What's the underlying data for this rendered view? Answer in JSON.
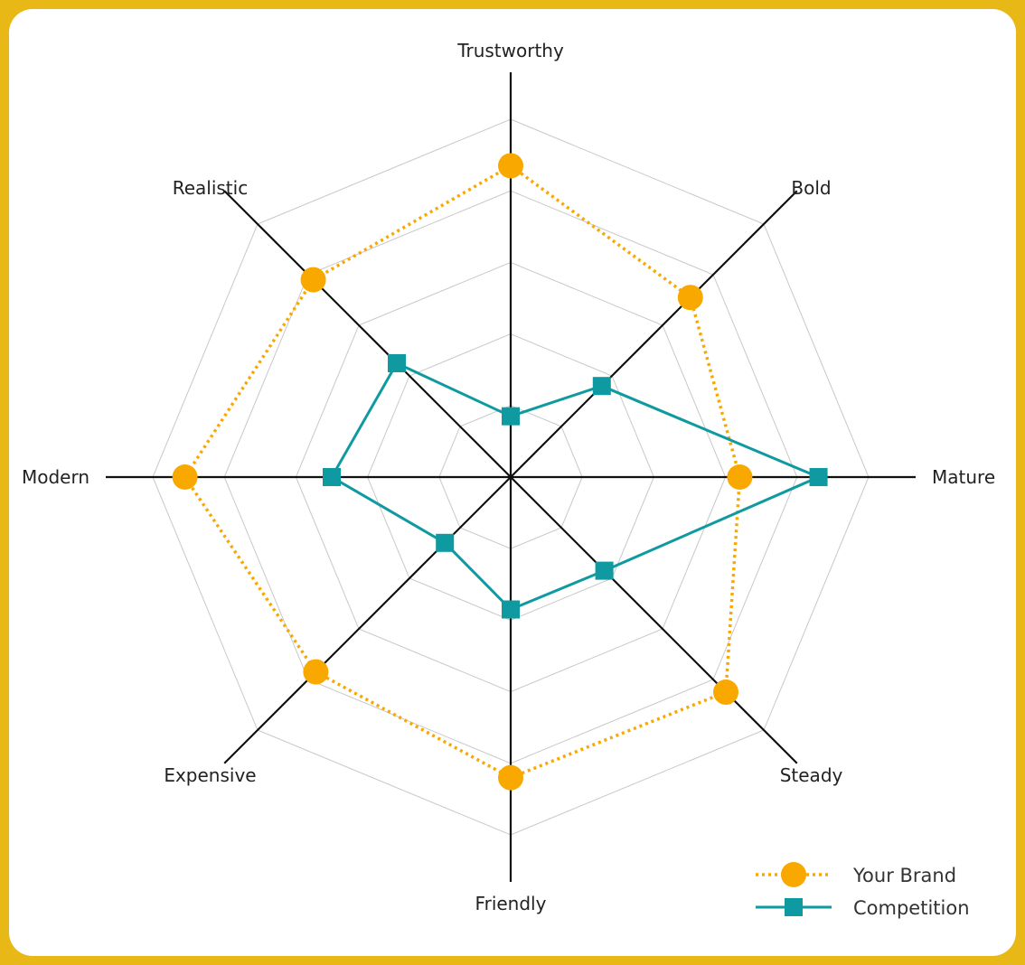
{
  "chart_data": {
    "type": "radar",
    "axes": [
      "Trustworthy",
      "Bold",
      "Mature",
      "Steady",
      "Friendly",
      "Expensive",
      "Modern",
      "Realistic"
    ],
    "range": [
      0,
      100
    ],
    "grid_levels": [
      20,
      40,
      60,
      80,
      100
    ],
    "grid": true,
    "legend_position": "bottom-right",
    "series": [
      {
        "name": "Your Brand",
        "values": [
          87,
          71,
          64,
          85,
          84,
          77,
          91,
          78
        ],
        "color": "#F9A800",
        "line_style": "dotted",
        "marker": "circle"
      },
      {
        "name": "Competition",
        "values": [
          17,
          36,
          86,
          37,
          37,
          26,
          50,
          45
        ],
        "color": "#0E9AA0",
        "line_style": "solid",
        "marker": "square"
      }
    ]
  }
}
